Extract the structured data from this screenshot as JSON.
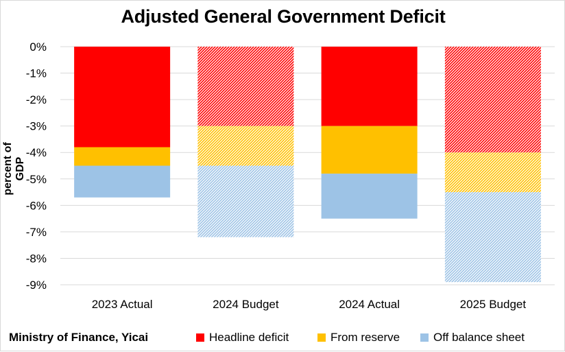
{
  "chart_data": {
    "type": "bar",
    "stacked": true,
    "title": "Adjusted General Government Deficit",
    "xlabel": "",
    "ylabel": "percent of GDP",
    "ylim": [
      -9,
      0
    ],
    "yticks": [
      0,
      -1,
      -2,
      -3,
      -4,
      -5,
      -6,
      -7,
      -8,
      -9
    ],
    "ytick_labels": [
      "0%",
      "-1%",
      "-2%",
      "-3%",
      "-4%",
      "-5%",
      "-6%",
      "-7%",
      "-8%",
      "-9%"
    ],
    "grid": true,
    "legend_position": "bottom-right",
    "categories": [
      "2023 Actual",
      "2024 Budget",
      "2024 Actual",
      "2025 Budget"
    ],
    "hatched_categories": [
      "2024 Budget",
      "2025 Budget"
    ],
    "series": [
      {
        "name": "Headline deficit",
        "color": "#ff0000",
        "values": [
          -3.8,
          -3.0,
          -3.0,
          -4.0
        ]
      },
      {
        "name": "From reserve",
        "color": "#ffc000",
        "values": [
          -0.7,
          -1.5,
          -1.8,
          -1.5
        ]
      },
      {
        "name": "Off balance sheet",
        "color": "#9dc3e6",
        "values": [
          -1.2,
          -2.7,
          -1.7,
          -3.4
        ]
      }
    ]
  },
  "source_note": "Ministry of Finance, Yicai"
}
